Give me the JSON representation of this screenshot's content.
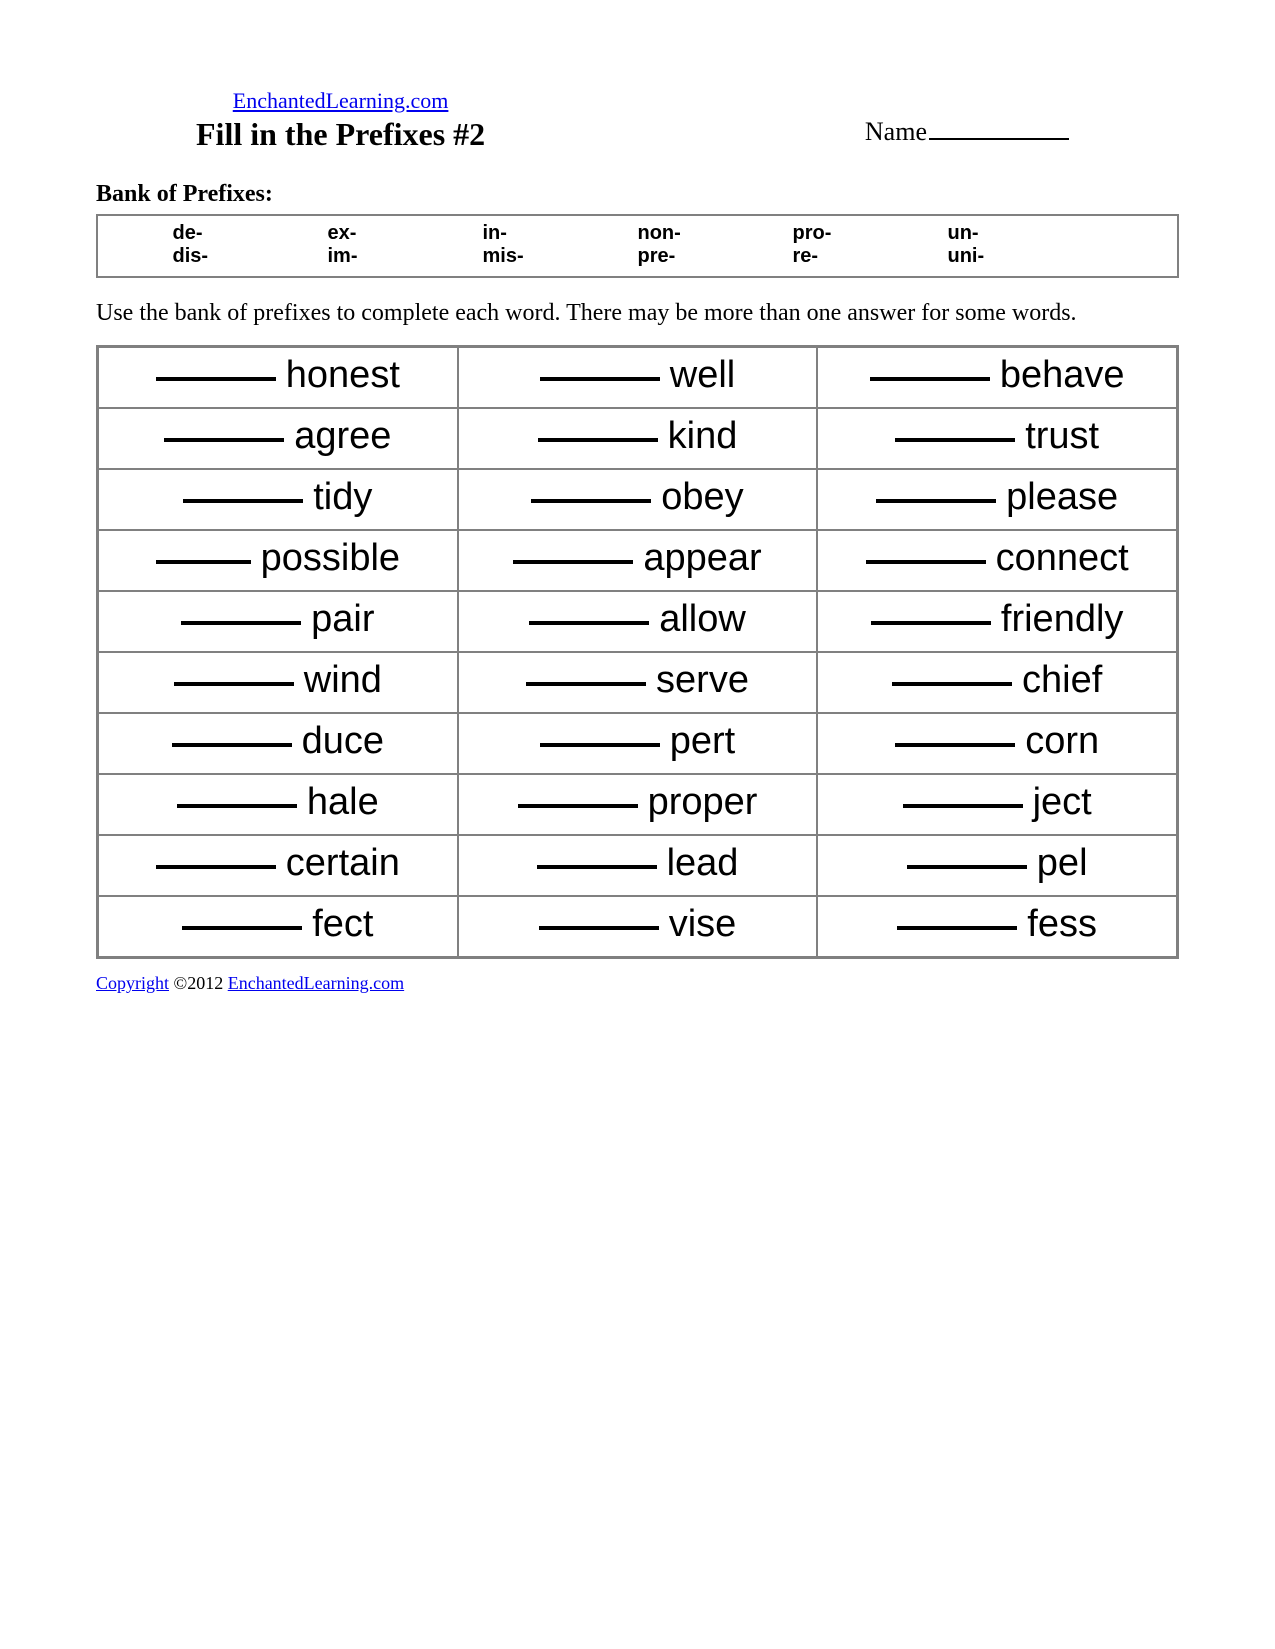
{
  "header": {
    "site_link": "EnchantedLearning.com",
    "title": "Fill in the Prefixes #2",
    "name_label": "Name"
  },
  "bank": {
    "label": "Bank of Prefixes:",
    "row1": [
      "de-",
      "ex-",
      "in-",
      "non-",
      "pro-",
      "un-"
    ],
    "row2": [
      "dis-",
      "im-",
      "mis-",
      "pre-",
      "re-",
      "uni-"
    ]
  },
  "instruction": "Use the bank of prefixes to complete each word. There may be more than one answer for some words.",
  "words": {
    "rows": [
      [
        "honest",
        "well",
        "behave"
      ],
      [
        "agree",
        "kind",
        "trust"
      ],
      [
        "tidy",
        "obey",
        "please"
      ],
      [
        "possible",
        "appear",
        "connect"
      ],
      [
        "pair",
        "allow",
        "friendly"
      ],
      [
        "wind",
        "serve",
        "chief"
      ],
      [
        "duce",
        "pert",
        "corn"
      ],
      [
        "hale",
        "proper",
        "ject"
      ],
      [
        "certain",
        "lead",
        "pel"
      ],
      [
        "fect",
        "vise",
        "fess"
      ]
    ],
    "short_blank": [
      "possible"
    ]
  },
  "footer": {
    "copyright_link": "Copyright",
    "copyright_text": " ©2012 ",
    "site_link": "EnchantedLearning.com"
  },
  "colors": {
    "link": "#0000ee",
    "border": "#808080",
    "text": "#000000",
    "background": "#ffffff"
  }
}
